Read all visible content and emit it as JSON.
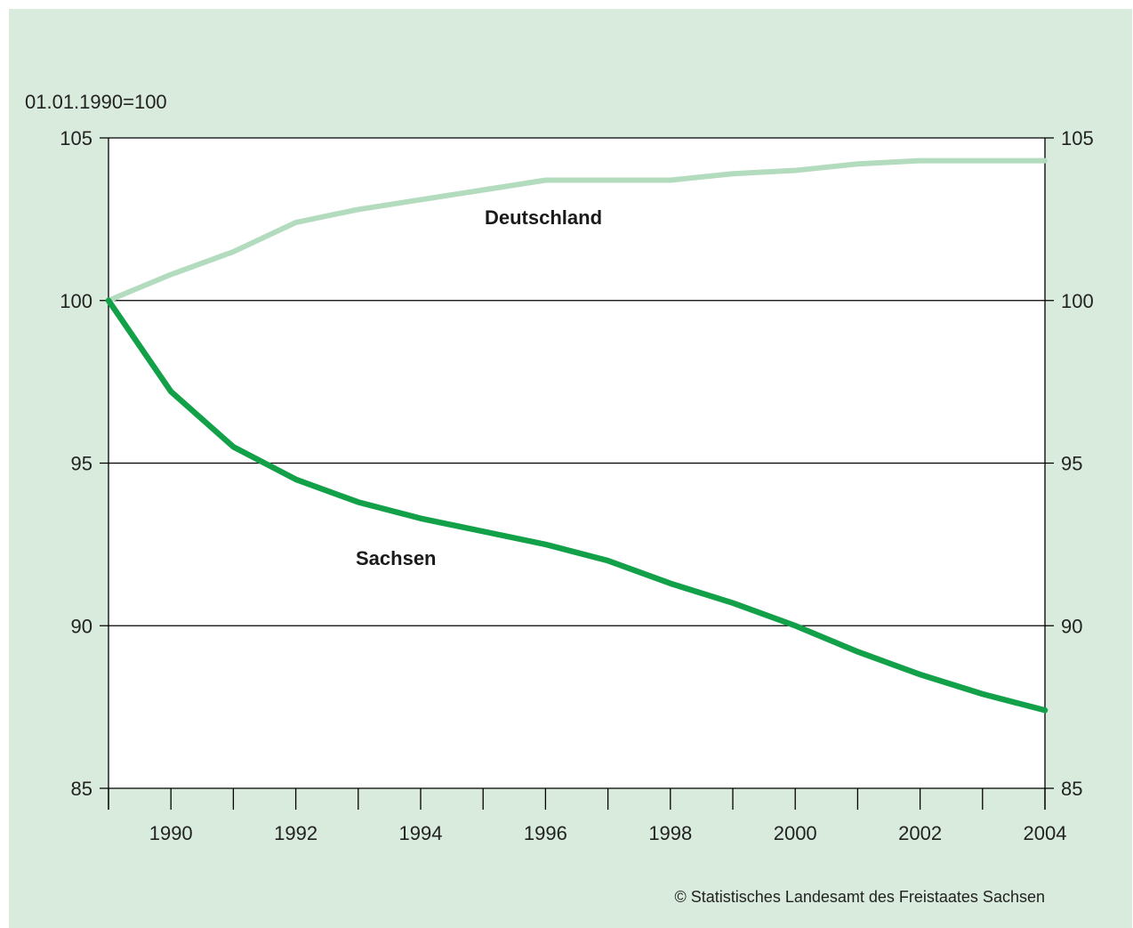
{
  "chart_data": {
    "type": "line",
    "unit_label": "01.01.1990=100",
    "x": [
      1989,
      1990,
      1991,
      1992,
      1993,
      1994,
      1995,
      1996,
      1997,
      1998,
      1999,
      2000,
      2001,
      2002,
      2003,
      2004
    ],
    "x_tick_labels": [
      "1990",
      "1992",
      "1994",
      "1996",
      "1998",
      "2000",
      "2002",
      "2004"
    ],
    "y_ticks": [
      85,
      90,
      95,
      100,
      105
    ],
    "ylim": [
      85,
      105
    ],
    "grid": "horizontal",
    "dual_y_axis": true,
    "series": [
      {
        "name": "Deutschland",
        "color": "#b3dcbf",
        "values": [
          100,
          100.8,
          101.5,
          102.4,
          102.8,
          103.1,
          103.4,
          103.7,
          103.7,
          103.7,
          103.9,
          104.0,
          104.2,
          104.3,
          104.3,
          104.3
        ]
      },
      {
        "name": "Sachsen",
        "color": "#12a048",
        "values": [
          100,
          97.2,
          95.5,
          94.5,
          93.8,
          93.3,
          92.9,
          92.5,
          92.0,
          91.3,
          90.7,
          90.0,
          89.2,
          88.5,
          87.9,
          87.4
        ]
      }
    ],
    "source": "© Statistisches Landesamt des Freistaates Sachsen"
  }
}
